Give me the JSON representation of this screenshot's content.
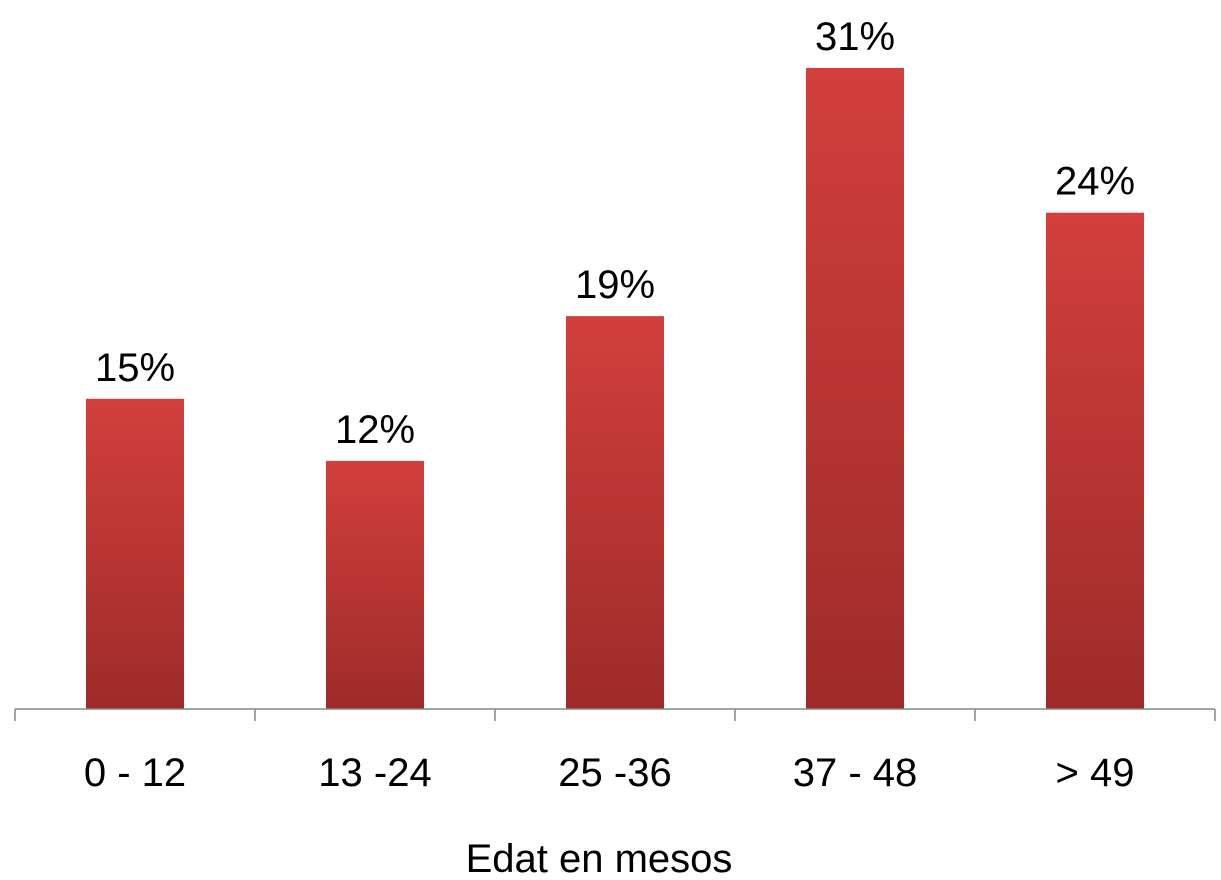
{
  "chart_data": {
    "type": "bar",
    "categories": [
      "0 - 12",
      "13 -24",
      "25 -36",
      "37 - 48",
      "> 49"
    ],
    "values": [
      15,
      12,
      19,
      31,
      24
    ],
    "value_labels": [
      "15%",
      "12%",
      "19%",
      "31%",
      "24%"
    ],
    "xlabel": "Edat en mesos",
    "ylabel": "",
    "ylim": [
      0,
      31
    ],
    "grid": false,
    "legend": "none",
    "bar_color_top": "#d23f3c",
    "bar_color_bottom": "#9e2b29",
    "axis_color": "#868686"
  }
}
